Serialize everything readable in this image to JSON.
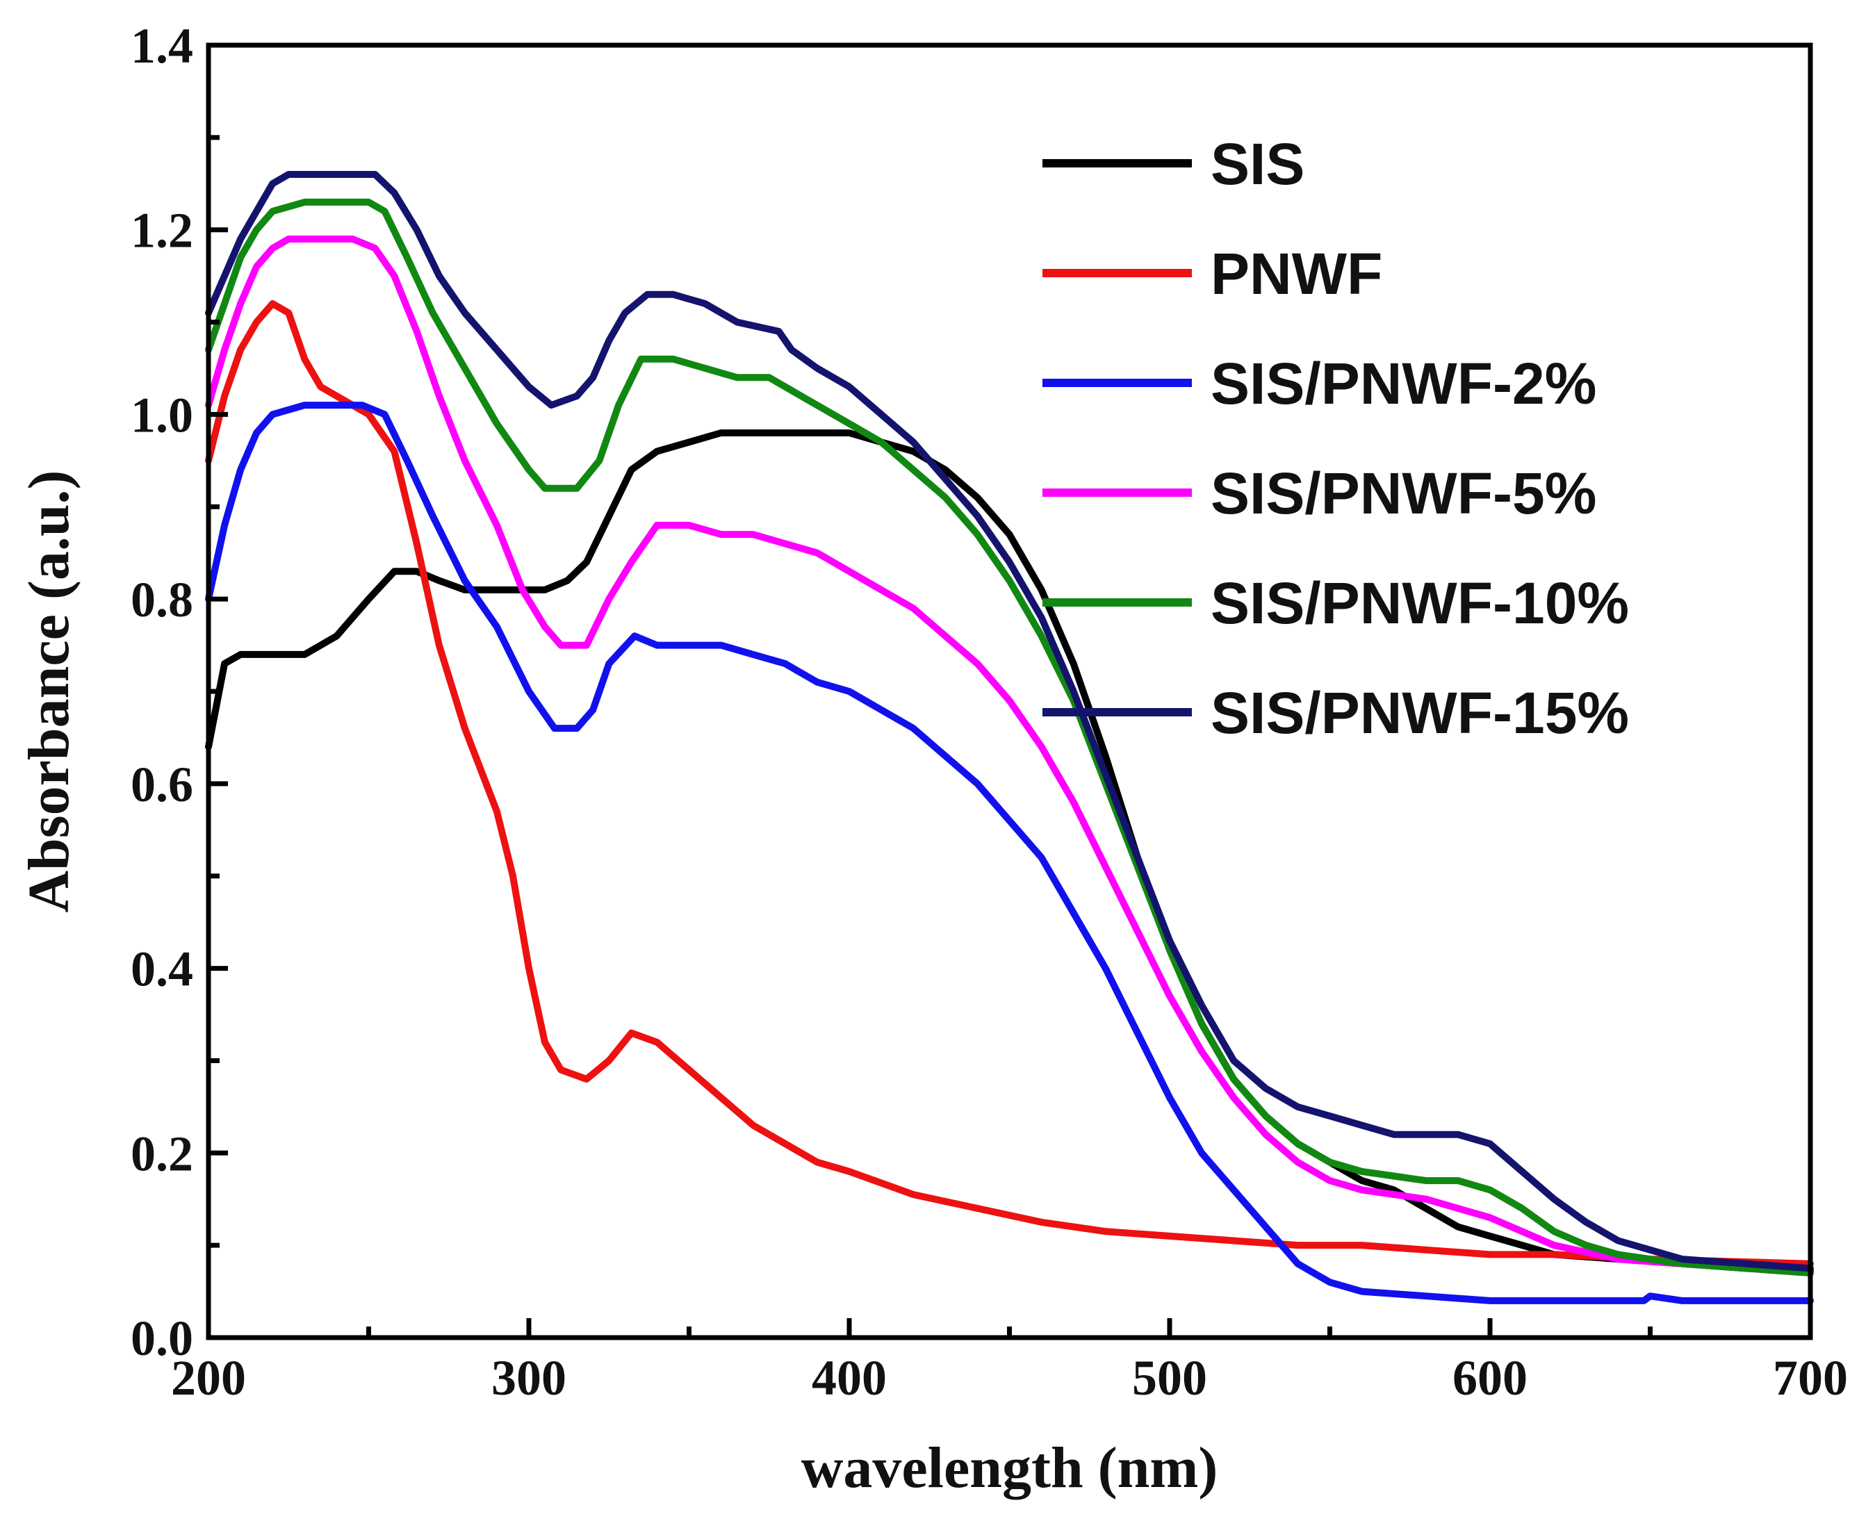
{
  "chart_data": {
    "type": "line",
    "title": "",
    "xlabel": "wavelength (nm)",
    "ylabel": "Absorbance (a.u.)",
    "xlim": [
      200,
      700
    ],
    "ylim": [
      0.0,
      1.4
    ],
    "x_ticks": [
      200,
      300,
      400,
      500,
      600,
      700
    ],
    "x_tick_labels": [
      "200",
      "300",
      "400",
      "500",
      "600",
      "700"
    ],
    "x_minor_ticks": [
      250,
      350,
      450,
      550,
      650
    ],
    "y_ticks": [
      0.0,
      0.2,
      0.4,
      0.6,
      0.8,
      1.0,
      1.2,
      1.4
    ],
    "y_tick_labels": [
      "0.0",
      "0.2",
      "0.4",
      "0.6",
      "0.8",
      "1.0",
      "1.2",
      "1.4"
    ],
    "y_minor_ticks": [
      0.1,
      0.3,
      0.5,
      0.7,
      0.9,
      1.1,
      1.3
    ],
    "grid": false,
    "legend_position": "top-right",
    "series": [
      {
        "name": "SIS",
        "color": "#000000",
        "points": [
          [
            200,
            0.64
          ],
          [
            205,
            0.73
          ],
          [
            210,
            0.74
          ],
          [
            215,
            0.74
          ],
          [
            220,
            0.74
          ],
          [
            225,
            0.74
          ],
          [
            230,
            0.74
          ],
          [
            240,
            0.76
          ],
          [
            250,
            0.8
          ],
          [
            258,
            0.83
          ],
          [
            265,
            0.83
          ],
          [
            272,
            0.82
          ],
          [
            280,
            0.81
          ],
          [
            290,
            0.81
          ],
          [
            300,
            0.81
          ],
          [
            305,
            0.81
          ],
          [
            312,
            0.82
          ],
          [
            318,
            0.84
          ],
          [
            325,
            0.89
          ],
          [
            332,
            0.94
          ],
          [
            340,
            0.96
          ],
          [
            350,
            0.97
          ],
          [
            360,
            0.98
          ],
          [
            375,
            0.98
          ],
          [
            385,
            0.98
          ],
          [
            400,
            0.98
          ],
          [
            410,
            0.97
          ],
          [
            420,
            0.96
          ],
          [
            430,
            0.94
          ],
          [
            440,
            0.91
          ],
          [
            450,
            0.87
          ],
          [
            460,
            0.81
          ],
          [
            470,
            0.73
          ],
          [
            480,
            0.63
          ],
          [
            490,
            0.52
          ],
          [
            500,
            0.42
          ],
          [
            510,
            0.34
          ],
          [
            520,
            0.28
          ],
          [
            530,
            0.24
          ],
          [
            540,
            0.21
          ],
          [
            550,
            0.19
          ],
          [
            560,
            0.17
          ],
          [
            570,
            0.16
          ],
          [
            580,
            0.14
          ],
          [
            590,
            0.12
          ],
          [
            600,
            0.11
          ],
          [
            610,
            0.1
          ],
          [
            620,
            0.09
          ],
          [
            640,
            0.085
          ],
          [
            660,
            0.08
          ],
          [
            680,
            0.075
          ],
          [
            700,
            0.072
          ]
        ]
      },
      {
        "name": "PNWF",
        "color": "#ee1111",
        "points": [
          [
            200,
            0.95
          ],
          [
            205,
            1.02
          ],
          [
            210,
            1.07
          ],
          [
            215,
            1.1
          ],
          [
            220,
            1.12
          ],
          [
            225,
            1.11
          ],
          [
            230,
            1.06
          ],
          [
            235,
            1.03
          ],
          [
            240,
            1.02
          ],
          [
            250,
            1.0
          ],
          [
            258,
            0.96
          ],
          [
            265,
            0.86
          ],
          [
            272,
            0.75
          ],
          [
            280,
            0.66
          ],
          [
            290,
            0.57
          ],
          [
            295,
            0.5
          ],
          [
            300,
            0.4
          ],
          [
            305,
            0.32
          ],
          [
            310,
            0.29
          ],
          [
            318,
            0.28
          ],
          [
            325,
            0.3
          ],
          [
            332,
            0.33
          ],
          [
            340,
            0.32
          ],
          [
            350,
            0.29
          ],
          [
            360,
            0.26
          ],
          [
            370,
            0.23
          ],
          [
            380,
            0.21
          ],
          [
            390,
            0.19
          ],
          [
            400,
            0.18
          ],
          [
            420,
            0.155
          ],
          [
            440,
            0.14
          ],
          [
            460,
            0.125
          ],
          [
            480,
            0.115
          ],
          [
            500,
            0.11
          ],
          [
            520,
            0.105
          ],
          [
            540,
            0.1
          ],
          [
            560,
            0.1
          ],
          [
            580,
            0.095
          ],
          [
            600,
            0.09
          ],
          [
            620,
            0.09
          ],
          [
            650,
            0.085
          ],
          [
            700,
            0.08
          ]
        ]
      },
      {
        "name": "SIS/PNWF-2%",
        "color": "#1111ee",
        "points": [
          [
            200,
            0.8
          ],
          [
            205,
            0.88
          ],
          [
            210,
            0.94
          ],
          [
            215,
            0.98
          ],
          [
            220,
            1.0
          ],
          [
            230,
            1.01
          ],
          [
            240,
            1.01
          ],
          [
            248,
            1.01
          ],
          [
            255,
            1.0
          ],
          [
            262,
            0.95
          ],
          [
            270,
            0.89
          ],
          [
            280,
            0.82
          ],
          [
            290,
            0.77
          ],
          [
            300,
            0.7
          ],
          [
            308,
            0.66
          ],
          [
            315,
            0.66
          ],
          [
            320,
            0.68
          ],
          [
            325,
            0.73
          ],
          [
            333,
            0.76
          ],
          [
            340,
            0.75
          ],
          [
            350,
            0.75
          ],
          [
            360,
            0.75
          ],
          [
            370,
            0.74
          ],
          [
            380,
            0.73
          ],
          [
            390,
            0.71
          ],
          [
            400,
            0.7
          ],
          [
            410,
            0.68
          ],
          [
            420,
            0.66
          ],
          [
            430,
            0.63
          ],
          [
            440,
            0.6
          ],
          [
            450,
            0.56
          ],
          [
            460,
            0.52
          ],
          [
            470,
            0.46
          ],
          [
            480,
            0.4
          ],
          [
            490,
            0.33
          ],
          [
            500,
            0.26
          ],
          [
            510,
            0.2
          ],
          [
            520,
            0.16
          ],
          [
            530,
            0.12
          ],
          [
            540,
            0.08
          ],
          [
            550,
            0.06
          ],
          [
            560,
            0.05
          ],
          [
            580,
            0.045
          ],
          [
            600,
            0.04
          ],
          [
            620,
            0.04
          ],
          [
            640,
            0.04
          ],
          [
            648,
            0.04
          ],
          [
            650,
            0.045
          ],
          [
            660,
            0.04
          ],
          [
            700,
            0.04
          ]
        ]
      },
      {
        "name": "SIS/PNWF-5%",
        "color": "#ff00ff",
        "points": [
          [
            200,
            1.01
          ],
          [
            205,
            1.07
          ],
          [
            210,
            1.12
          ],
          [
            215,
            1.16
          ],
          [
            220,
            1.18
          ],
          [
            225,
            1.19
          ],
          [
            235,
            1.19
          ],
          [
            245,
            1.19
          ],
          [
            252,
            1.18
          ],
          [
            258,
            1.15
          ],
          [
            265,
            1.09
          ],
          [
            272,
            1.02
          ],
          [
            280,
            0.95
          ],
          [
            290,
            0.88
          ],
          [
            298,
            0.81
          ],
          [
            305,
            0.77
          ],
          [
            310,
            0.75
          ],
          [
            318,
            0.75
          ],
          [
            325,
            0.8
          ],
          [
            332,
            0.84
          ],
          [
            340,
            0.88
          ],
          [
            350,
            0.88
          ],
          [
            360,
            0.87
          ],
          [
            370,
            0.87
          ],
          [
            380,
            0.86
          ],
          [
            390,
            0.85
          ],
          [
            400,
            0.83
          ],
          [
            410,
            0.81
          ],
          [
            420,
            0.79
          ],
          [
            430,
            0.76
          ],
          [
            440,
            0.73
          ],
          [
            450,
            0.69
          ],
          [
            460,
            0.64
          ],
          [
            470,
            0.58
          ],
          [
            480,
            0.51
          ],
          [
            490,
            0.44
          ],
          [
            500,
            0.37
          ],
          [
            510,
            0.31
          ],
          [
            520,
            0.26
          ],
          [
            530,
            0.22
          ],
          [
            540,
            0.19
          ],
          [
            550,
            0.17
          ],
          [
            560,
            0.16
          ],
          [
            570,
            0.155
          ],
          [
            580,
            0.15
          ],
          [
            590,
            0.14
          ],
          [
            600,
            0.13
          ],
          [
            610,
            0.115
          ],
          [
            620,
            0.1
          ],
          [
            640,
            0.085
          ],
          [
            660,
            0.08
          ],
          [
            680,
            0.075
          ],
          [
            700,
            0.07
          ]
        ]
      },
      {
        "name": "SIS/PNWF-10%",
        "color": "#118811",
        "points": [
          [
            200,
            1.07
          ],
          [
            205,
            1.12
          ],
          [
            210,
            1.17
          ],
          [
            215,
            1.2
          ],
          [
            220,
            1.22
          ],
          [
            230,
            1.23
          ],
          [
            240,
            1.23
          ],
          [
            250,
            1.23
          ],
          [
            255,
            1.22
          ],
          [
            262,
            1.17
          ],
          [
            270,
            1.11
          ],
          [
            280,
            1.05
          ],
          [
            290,
            0.99
          ],
          [
            300,
            0.94
          ],
          [
            305,
            0.92
          ],
          [
            315,
            0.92
          ],
          [
            322,
            0.95
          ],
          [
            328,
            1.01
          ],
          [
            335,
            1.06
          ],
          [
            345,
            1.06
          ],
          [
            355,
            1.05
          ],
          [
            365,
            1.04
          ],
          [
            375,
            1.04
          ],
          [
            385,
            1.02
          ],
          [
            400,
            0.99
          ],
          [
            410,
            0.97
          ],
          [
            420,
            0.94
          ],
          [
            430,
            0.91
          ],
          [
            440,
            0.87
          ],
          [
            450,
            0.82
          ],
          [
            460,
            0.76
          ],
          [
            470,
            0.69
          ],
          [
            480,
            0.6
          ],
          [
            490,
            0.51
          ],
          [
            500,
            0.42
          ],
          [
            510,
            0.34
          ],
          [
            520,
            0.28
          ],
          [
            530,
            0.24
          ],
          [
            540,
            0.21
          ],
          [
            550,
            0.19
          ],
          [
            560,
            0.18
          ],
          [
            570,
            0.175
          ],
          [
            580,
            0.17
          ],
          [
            590,
            0.17
          ],
          [
            600,
            0.16
          ],
          [
            610,
            0.14
          ],
          [
            620,
            0.115
          ],
          [
            630,
            0.1
          ],
          [
            640,
            0.09
          ],
          [
            660,
            0.08
          ],
          [
            680,
            0.075
          ],
          [
            700,
            0.07
          ]
        ]
      },
      {
        "name": "SIS/PNWF-15%",
        "color": "#14146e",
        "points": [
          [
            200,
            1.11
          ],
          [
            205,
            1.15
          ],
          [
            210,
            1.19
          ],
          [
            215,
            1.22
          ],
          [
            220,
            1.25
          ],
          [
            225,
            1.26
          ],
          [
            235,
            1.26
          ],
          [
            245,
            1.26
          ],
          [
            252,
            1.26
          ],
          [
            258,
            1.24
          ],
          [
            265,
            1.2
          ],
          [
            272,
            1.15
          ],
          [
            280,
            1.11
          ],
          [
            290,
            1.07
          ],
          [
            300,
            1.03
          ],
          [
            307,
            1.01
          ],
          [
            315,
            1.02
          ],
          [
            320,
            1.04
          ],
          [
            325,
            1.08
          ],
          [
            330,
            1.11
          ],
          [
            337,
            1.13
          ],
          [
            345,
            1.13
          ],
          [
            355,
            1.12
          ],
          [
            365,
            1.1
          ],
          [
            378,
            1.09
          ],
          [
            382,
            1.07
          ],
          [
            390,
            1.05
          ],
          [
            400,
            1.03
          ],
          [
            410,
            1.0
          ],
          [
            420,
            0.97
          ],
          [
            430,
            0.93
          ],
          [
            440,
            0.89
          ],
          [
            450,
            0.84
          ],
          [
            460,
            0.78
          ],
          [
            470,
            0.7
          ],
          [
            480,
            0.61
          ],
          [
            490,
            0.52
          ],
          [
            500,
            0.43
          ],
          [
            510,
            0.36
          ],
          [
            520,
            0.3
          ],
          [
            530,
            0.27
          ],
          [
            540,
            0.25
          ],
          [
            550,
            0.24
          ],
          [
            560,
            0.23
          ],
          [
            570,
            0.22
          ],
          [
            580,
            0.22
          ],
          [
            590,
            0.22
          ],
          [
            600,
            0.21
          ],
          [
            610,
            0.18
          ],
          [
            620,
            0.15
          ],
          [
            630,
            0.125
          ],
          [
            640,
            0.105
          ],
          [
            650,
            0.095
          ],
          [
            660,
            0.085
          ],
          [
            680,
            0.08
          ],
          [
            700,
            0.075
          ]
        ]
      }
    ]
  }
}
